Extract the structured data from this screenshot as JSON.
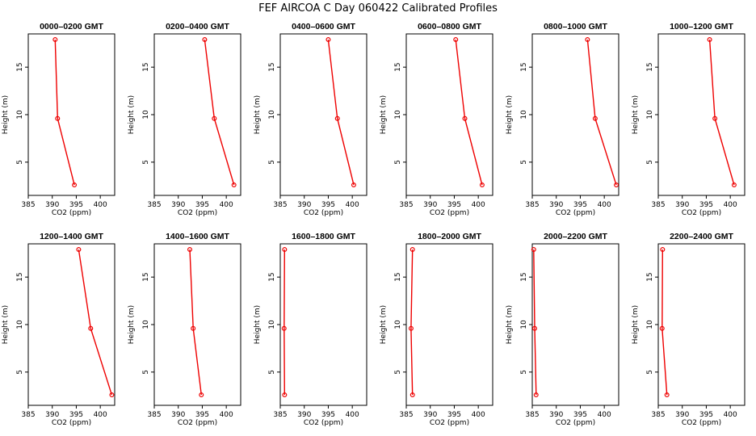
{
  "chart_data": {
    "type": "line",
    "title": "FEF  AIRCOA C  Day 060422  Calibrated Profiles",
    "xlabel": "CO2 (ppm)",
    "ylabel": "Height (m)",
    "xlim": [
      385,
      403
    ],
    "ylim": [
      1.5,
      18.5
    ],
    "xticks": [
      385,
      390,
      395,
      400
    ],
    "yticks": [
      5,
      10,
      15
    ],
    "line_color": "#ee0000",
    "panels": [
      {
        "title": "0000–0200 GMT",
        "points": [
          {
            "x": 390.6,
            "y": 17.9
          },
          {
            "x": 391.1,
            "y": 9.6
          },
          {
            "x": 394.6,
            "y": 2.6
          }
        ]
      },
      {
        "title": "0200–0400 GMT",
        "points": [
          {
            "x": 395.5,
            "y": 17.9
          },
          {
            "x": 397.5,
            "y": 9.6
          },
          {
            "x": 401.6,
            "y": 2.6
          }
        ]
      },
      {
        "title": "0400–0600 GMT",
        "points": [
          {
            "x": 395.0,
            "y": 17.9
          },
          {
            "x": 396.9,
            "y": 9.6
          },
          {
            "x": 400.3,
            "y": 2.6
          }
        ]
      },
      {
        "title": "0600–0800 GMT",
        "points": [
          {
            "x": 395.3,
            "y": 17.9
          },
          {
            "x": 397.2,
            "y": 9.6
          },
          {
            "x": 400.8,
            "y": 2.6
          }
        ]
      },
      {
        "title": "0800–1000 GMT",
        "points": [
          {
            "x": 396.5,
            "y": 17.9
          },
          {
            "x": 398.1,
            "y": 9.6
          },
          {
            "x": 402.5,
            "y": 2.6
          }
        ]
      },
      {
        "title": "1000–1200 GMT",
        "points": [
          {
            "x": 395.7,
            "y": 17.9
          },
          {
            "x": 396.8,
            "y": 9.6
          },
          {
            "x": 400.8,
            "y": 2.6
          }
        ]
      },
      {
        "title": "1200–1400 GMT",
        "points": [
          {
            "x": 395.5,
            "y": 17.9
          },
          {
            "x": 398.0,
            "y": 9.6
          },
          {
            "x": 402.4,
            "y": 2.6
          }
        ]
      },
      {
        "title": "1400–1600 GMT",
        "points": [
          {
            "x": 392.4,
            "y": 17.9
          },
          {
            "x": 393.1,
            "y": 9.6
          },
          {
            "x": 394.8,
            "y": 2.6
          }
        ]
      },
      {
        "title": "1600–1800 GMT",
        "points": [
          {
            "x": 385.9,
            "y": 17.9
          },
          {
            "x": 385.8,
            "y": 9.6
          },
          {
            "x": 385.9,
            "y": 2.6
          }
        ]
      },
      {
        "title": "1800–2000 GMT",
        "points": [
          {
            "x": 386.3,
            "y": 17.9
          },
          {
            "x": 386.0,
            "y": 9.6
          },
          {
            "x": 386.3,
            "y": 2.6
          }
        ]
      },
      {
        "title": "2000–2200 GMT",
        "points": [
          {
            "x": 385.3,
            "y": 17.9
          },
          {
            "x": 385.5,
            "y": 9.6
          },
          {
            "x": 385.8,
            "y": 2.6
          }
        ]
      },
      {
        "title": "2200–2400 GMT",
        "points": [
          {
            "x": 385.9,
            "y": 17.9
          },
          {
            "x": 385.8,
            "y": 9.6
          },
          {
            "x": 386.8,
            "y": 2.6
          }
        ]
      }
    ]
  }
}
